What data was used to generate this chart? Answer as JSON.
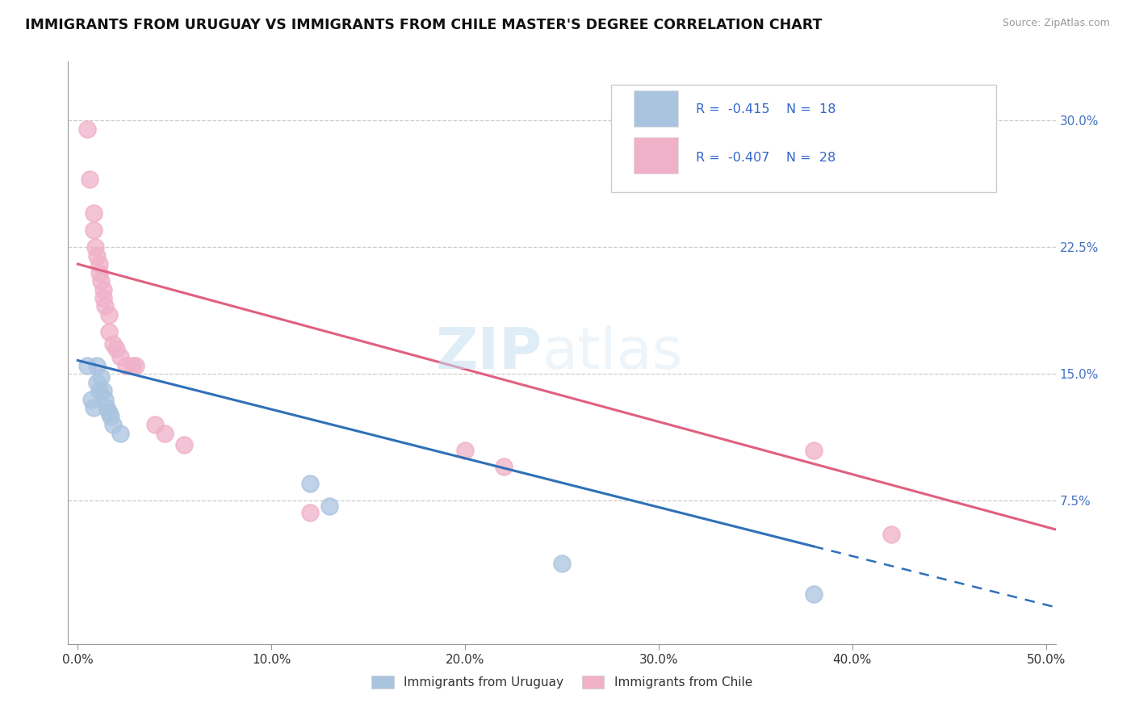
{
  "title": "IMMIGRANTS FROM URUGUAY VS IMMIGRANTS FROM CHILE MASTER'S DEGREE CORRELATION CHART",
  "source": "Source: ZipAtlas.com",
  "xlabel_ticks": [
    "0.0%",
    "10.0%",
    "20.0%",
    "30.0%",
    "40.0%",
    "50.0%"
  ],
  "xlabel_vals": [
    0.0,
    0.1,
    0.2,
    0.3,
    0.4,
    0.5
  ],
  "ylabel_ticks": [
    "7.5%",
    "15.0%",
    "22.5%",
    "30.0%"
  ],
  "ylabel_vals": [
    0.075,
    0.15,
    0.225,
    0.3
  ],
  "xlim": [
    -0.005,
    0.505
  ],
  "ylim": [
    -0.01,
    0.335
  ],
  "legend_r_uruguay": "-0.415",
  "legend_n_uruguay": "18",
  "legend_r_chile": "-0.407",
  "legend_n_chile": "28",
  "legend_label_uruguay": "Immigrants from Uruguay",
  "legend_label_chile": "Immigrants from Chile",
  "watermark_zip": "ZIP",
  "watermark_atlas": "atlas",
  "uruguay_color": "#aac4e0",
  "chile_color": "#f0b0c8",
  "uruguay_line_color": "#3070b8",
  "chile_line_color": "#e06080",
  "uruguay_scatter": [
    [
      0.005,
      0.155
    ],
    [
      0.007,
      0.135
    ],
    [
      0.008,
      0.13
    ],
    [
      0.01,
      0.155
    ],
    [
      0.01,
      0.145
    ],
    [
      0.011,
      0.14
    ],
    [
      0.012,
      0.148
    ],
    [
      0.013,
      0.14
    ],
    [
      0.014,
      0.135
    ],
    [
      0.015,
      0.13
    ],
    [
      0.016,
      0.127
    ],
    [
      0.017,
      0.125
    ],
    [
      0.018,
      0.12
    ],
    [
      0.022,
      0.115
    ],
    [
      0.12,
      0.085
    ],
    [
      0.13,
      0.072
    ],
    [
      0.25,
      0.038
    ],
    [
      0.38,
      0.02
    ]
  ],
  "chile_scatter": [
    [
      0.005,
      0.295
    ],
    [
      0.006,
      0.265
    ],
    [
      0.008,
      0.245
    ],
    [
      0.008,
      0.235
    ],
    [
      0.009,
      0.225
    ],
    [
      0.01,
      0.22
    ],
    [
      0.011,
      0.215
    ],
    [
      0.011,
      0.21
    ],
    [
      0.012,
      0.205
    ],
    [
      0.013,
      0.2
    ],
    [
      0.013,
      0.195
    ],
    [
      0.014,
      0.19
    ],
    [
      0.016,
      0.185
    ],
    [
      0.016,
      0.175
    ],
    [
      0.018,
      0.168
    ],
    [
      0.02,
      0.165
    ],
    [
      0.022,
      0.16
    ],
    [
      0.025,
      0.155
    ],
    [
      0.028,
      0.155
    ],
    [
      0.03,
      0.155
    ],
    [
      0.04,
      0.12
    ],
    [
      0.045,
      0.115
    ],
    [
      0.055,
      0.108
    ],
    [
      0.12,
      0.068
    ],
    [
      0.2,
      0.105
    ],
    [
      0.22,
      0.095
    ],
    [
      0.38,
      0.105
    ],
    [
      0.42,
      0.055
    ]
  ],
  "uruguay_line_solid": [
    [
      0.0,
      0.158
    ],
    [
      0.38,
      0.048
    ]
  ],
  "uruguay_line_dashed": [
    [
      0.38,
      0.048
    ],
    [
      0.505,
      0.012
    ]
  ],
  "chile_line": [
    [
      0.0,
      0.215
    ],
    [
      0.505,
      0.058
    ]
  ]
}
